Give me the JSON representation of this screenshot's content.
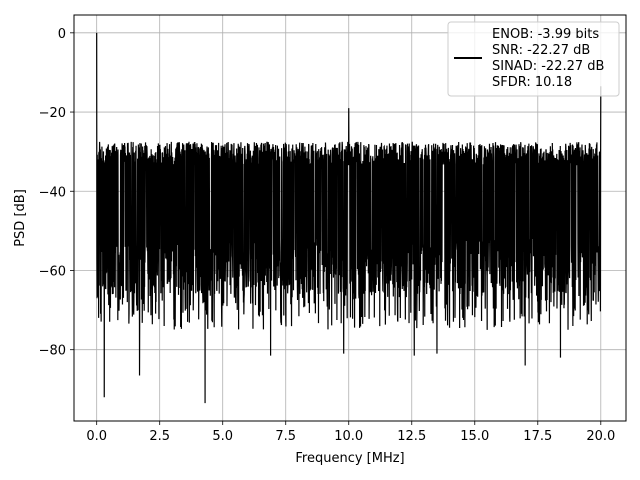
{
  "chart_data": {
    "type": "line",
    "title": "",
    "xlabel": "Frequency [MHz]",
    "ylabel": "PSD [dB]",
    "xlim": [
      -0.9,
      21.0
    ],
    "ylim": [
      -98,
      4.5
    ],
    "xticks": [
      "0.0",
      "2.5",
      "5.0",
      "7.5",
      "10.0",
      "12.5",
      "15.0",
      "17.5",
      "20.0"
    ],
    "yticks": [
      "0",
      "−20",
      "−40",
      "−60",
      "−80"
    ],
    "grid": true,
    "legend_position": "top-right",
    "legend_lines": [
      "ENOB: -3.99 bits",
      "SNR: -22.27 dB",
      "SINAD: -22.27 dB",
      "SFDR: 10.18"
    ],
    "line_color": "#000000",
    "series": [
      {
        "x_range": [
          0,
          20
        ],
        "upper_envelope_approx": -26.5,
        "lower_envelope_approx": -66,
        "peaks": [
          {
            "x": 0.0,
            "y": 0
          },
          {
            "x": 10.0,
            "y": -19
          },
          {
            "x": 20.0,
            "y": -13.5
          }
        ],
        "deep_nulls": [
          {
            "x": 0.3,
            "y": -92
          },
          {
            "x": 1.7,
            "y": -86.5
          },
          {
            "x": 4.3,
            "y": -93.5
          },
          {
            "x": 6.9,
            "y": -81.5
          },
          {
            "x": 9.8,
            "y": -81
          },
          {
            "x": 12.6,
            "y": -81.5
          },
          {
            "x": 13.5,
            "y": -81
          },
          {
            "x": 17.0,
            "y": -84
          },
          {
            "x": 18.4,
            "y": -82
          }
        ]
      }
    ]
  }
}
